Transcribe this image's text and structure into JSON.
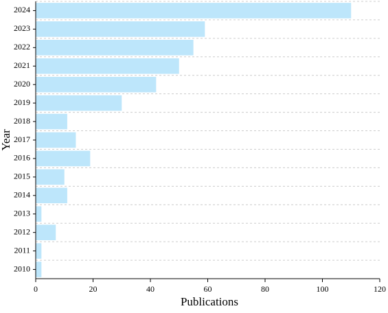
{
  "chart_data": {
    "type": "barh",
    "xlabel": "Publications",
    "ylabel": "Year",
    "categories": [
      "2010",
      "2011",
      "2012",
      "2013",
      "2014",
      "2015",
      "2016",
      "2017",
      "2018",
      "2019",
      "2020",
      "2021",
      "2022",
      "2023",
      "2024"
    ],
    "values": [
      2,
      2,
      7,
      2,
      11,
      10,
      19,
      14,
      11,
      30,
      42,
      50,
      55,
      59,
      110
    ],
    "color": "#bde6fb",
    "xlim": [
      0,
      120
    ],
    "xticks": [
      0,
      20,
      40,
      60,
      80,
      100,
      120
    ],
    "grid": true
  }
}
